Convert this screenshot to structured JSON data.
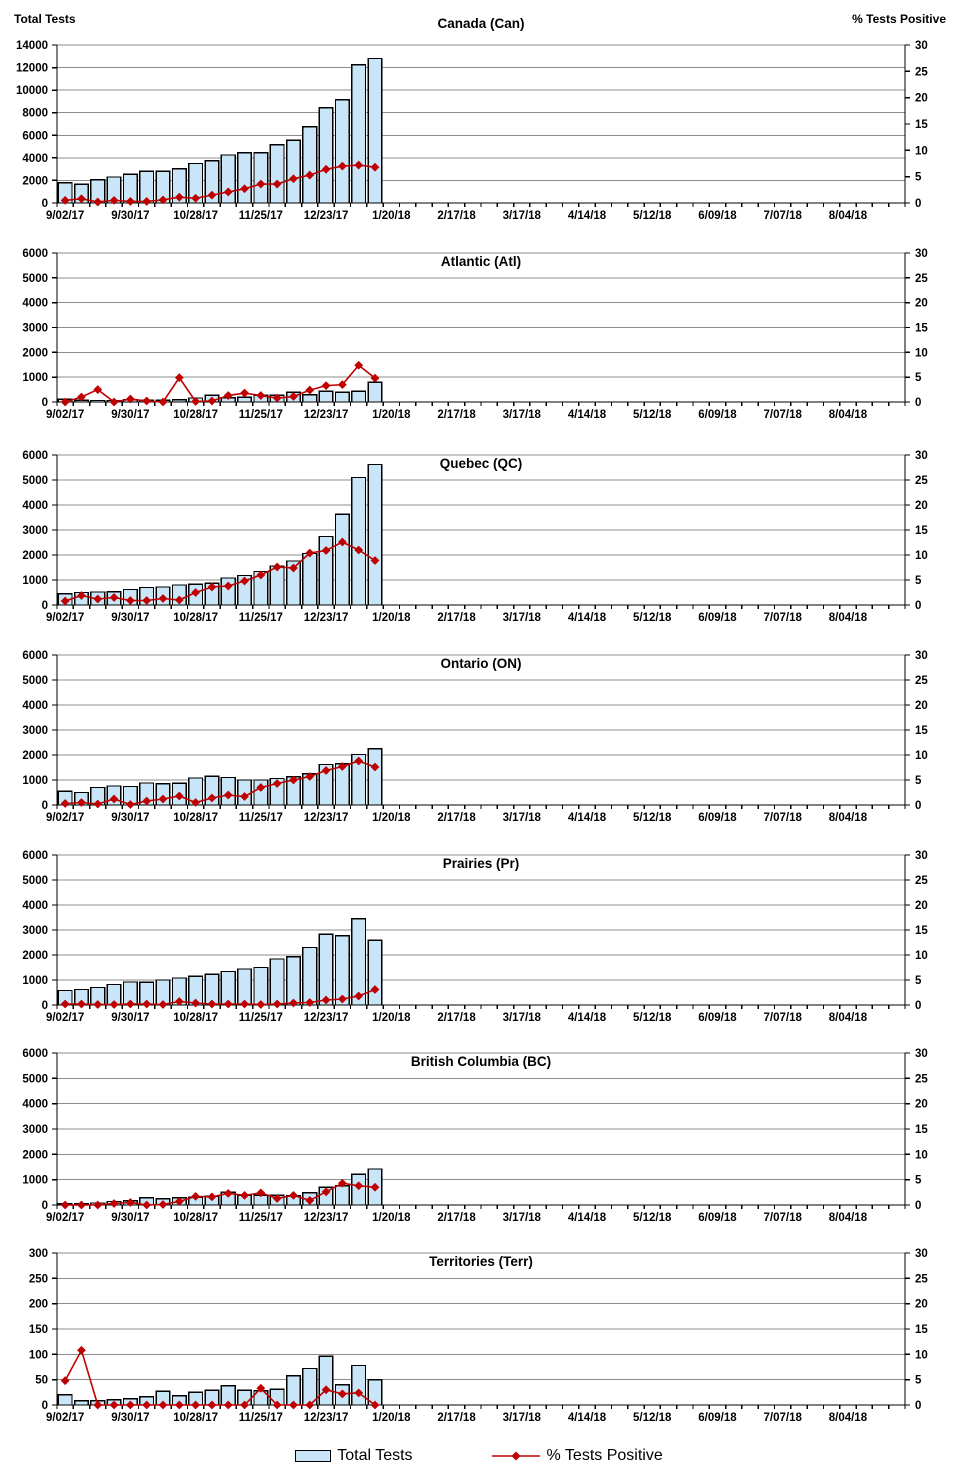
{
  "page": {
    "left_axis_title": "Total Tests",
    "right_axis_title": "% Tests Positive",
    "legend": {
      "bar_label": "Total Tests",
      "line_label": "% Tests Positive"
    }
  },
  "colors": {
    "bar_fill": "#C9E6F8",
    "bar_border": "#000000",
    "line": "#C00000",
    "gridline": "#8C8C8C",
    "axis": "#000000",
    "text": "#000000"
  },
  "x_axis": {
    "tick_labels": [
      "9/02/17",
      "9/30/17",
      "10/28/17",
      "11/25/17",
      "12/23/17",
      "1/20/18",
      "2/17/18",
      "3/17/18",
      "4/14/18",
      "5/12/18",
      "6/09/18",
      "7/07/18",
      "8/04/18"
    ],
    "label_every_n_weeks": 4,
    "total_slots": 52,
    "weeks": [
      "9/02/17",
      "9/09/17",
      "9/16/17",
      "9/23/17",
      "9/30/17",
      "10/07/17",
      "10/14/17",
      "10/21/17",
      "10/28/17",
      "11/04/17",
      "11/11/17",
      "11/18/17",
      "11/25/17",
      "12/02/17",
      "12/09/17",
      "12/16/17",
      "12/23/17",
      "12/30/17",
      "1/06/18",
      "1/13/18"
    ]
  },
  "right_axis": {
    "min": 0,
    "max": 30,
    "step": 5
  },
  "chart_data": [
    {
      "type": "bar+line",
      "title": "Canada (Can)",
      "left_axis": {
        "min": 0,
        "max": 14000,
        "step": 2000
      },
      "series": [
        {
          "name": "Total Tests",
          "type": "bar",
          "axis": "left",
          "values": [
            1800,
            1650,
            2050,
            2300,
            2550,
            2800,
            2800,
            3050,
            3500,
            3750,
            4250,
            4450,
            4450,
            5150,
            5550,
            6750,
            8450,
            9150,
            12250,
            12800
          ]
        },
        {
          "name": "% Tests Positive",
          "type": "line",
          "axis": "right",
          "values": [
            0.5,
            0.8,
            0.2,
            0.5,
            0.3,
            0.3,
            0.6,
            1.1,
            0.9,
            1.5,
            2.1,
            2.7,
            3.6,
            3.6,
            4.6,
            5.3,
            6.4,
            7.0,
            7.2,
            6.8
          ]
        }
      ]
    },
    {
      "type": "bar+line",
      "title": "Atlantic (Atl)",
      "left_axis": {
        "min": 0,
        "max": 6000,
        "step": 1000
      },
      "series": [
        {
          "name": "Total Tests",
          "type": "bar",
          "axis": "left",
          "values": [
            110,
            70,
            60,
            60,
            85,
            70,
            70,
            85,
            160,
            270,
            170,
            190,
            270,
            270,
            400,
            300,
            430,
            390,
            430,
            800
          ]
        },
        {
          "name": "% Tests Positive",
          "type": "line",
          "axis": "right",
          "values": [
            0,
            1.0,
            2.5,
            0,
            0.6,
            0.2,
            0,
            4.9,
            0.1,
            0.2,
            1.3,
            1.8,
            1.3,
            0.8,
            1.1,
            2.4,
            3.3,
            3.5,
            7.4,
            4.8
          ]
        }
      ]
    },
    {
      "type": "bar+line",
      "title": "Quebec (QC)",
      "left_axis": {
        "min": 0,
        "max": 6000,
        "step": 1000
      },
      "series": [
        {
          "name": "Total Tests",
          "type": "bar",
          "axis": "left",
          "values": [
            450,
            500,
            520,
            530,
            620,
            700,
            720,
            800,
            830,
            870,
            1080,
            1180,
            1340,
            1560,
            1760,
            2060,
            2740,
            3630,
            5100,
            5620
          ]
        },
        {
          "name": "% Tests Positive",
          "type": "line",
          "axis": "right",
          "values": [
            0.8,
            1.9,
            1.2,
            1.5,
            0.9,
            0.9,
            1.3,
            1.0,
            2.5,
            3.6,
            3.8,
            4.8,
            6.0,
            7.6,
            7.4,
            10.4,
            10.9,
            12.6,
            11.0,
            8.9
          ]
        }
      ]
    },
    {
      "type": "bar+line",
      "title": "Ontario (ON)",
      "left_axis": {
        "min": 0,
        "max": 6000,
        "step": 1000
      },
      "series": [
        {
          "name": "Total Tests",
          "type": "bar",
          "axis": "left",
          "values": [
            550,
            500,
            700,
            760,
            740,
            880,
            850,
            870,
            1080,
            1150,
            1100,
            1000,
            1000,
            1060,
            1130,
            1250,
            1620,
            1650,
            2020,
            2250
          ]
        },
        {
          "name": "% Tests Positive",
          "type": "line",
          "axis": "right",
          "values": [
            0.3,
            0.5,
            0.2,
            1.2,
            0.1,
            0.8,
            1.2,
            1.8,
            0.5,
            1.4,
            2.0,
            1.7,
            3.5,
            4.3,
            5.0,
            5.7,
            6.9,
            7.7,
            8.8,
            7.6
          ]
        }
      ]
    },
    {
      "type": "bar+line",
      "title": "Prairies (Pr)",
      "left_axis": {
        "min": 0,
        "max": 6000,
        "step": 1000
      },
      "series": [
        {
          "name": "Total Tests",
          "type": "bar",
          "axis": "left",
          "values": [
            580,
            620,
            700,
            820,
            920,
            910,
            1000,
            1080,
            1150,
            1230,
            1340,
            1440,
            1500,
            1840,
            1930,
            2300,
            2830,
            2770,
            3450,
            2590
          ]
        },
        {
          "name": "% Tests Positive",
          "type": "line",
          "axis": "right",
          "values": [
            0.2,
            0.2,
            0.1,
            0.1,
            0.2,
            0.2,
            0.1,
            0.7,
            0.4,
            0.2,
            0.2,
            0.2,
            0.1,
            0.2,
            0.4,
            0.5,
            1.0,
            1.2,
            1.8,
            3.1
          ]
        }
      ]
    },
    {
      "type": "bar+line",
      "title": "British Columbia (BC)",
      "left_axis": {
        "min": 0,
        "max": 6000,
        "step": 1000
      },
      "series": [
        {
          "name": "Total Tests",
          "type": "bar",
          "axis": "left",
          "values": [
            50,
            50,
            80,
            140,
            170,
            290,
            240,
            290,
            300,
            340,
            500,
            390,
            380,
            390,
            370,
            490,
            700,
            760,
            1210,
            1420
          ]
        },
        {
          "name": "% Tests Positive",
          "type": "line",
          "axis": "right",
          "values": [
            0,
            0,
            0,
            0.3,
            0.5,
            0,
            0.1,
            0.7,
            1.7,
            1.6,
            2.3,
            1.9,
            2.4,
            1.3,
            1.9,
            0.9,
            2.6,
            4.3,
            3.8,
            3.5
          ]
        }
      ]
    },
    {
      "type": "bar+line",
      "title": "Territories (Terr)",
      "left_axis": {
        "min": 0,
        "max": 300,
        "step": 50
      },
      "series": [
        {
          "name": "Total Tests",
          "type": "bar",
          "axis": "left",
          "values": [
            20,
            8,
            8,
            10,
            12,
            16,
            27,
            18,
            25,
            29,
            38,
            29,
            28,
            31,
            58,
            72,
            96,
            40,
            78,
            50
          ]
        },
        {
          "name": "% Tests Positive",
          "type": "line",
          "axis": "right",
          "values": [
            4.8,
            10.8,
            0,
            0,
            0,
            0,
            0,
            0,
            0,
            0,
            0,
            0,
            3.3,
            0,
            0,
            0,
            3.0,
            2.2,
            2.4,
            0
          ]
        }
      ]
    }
  ]
}
